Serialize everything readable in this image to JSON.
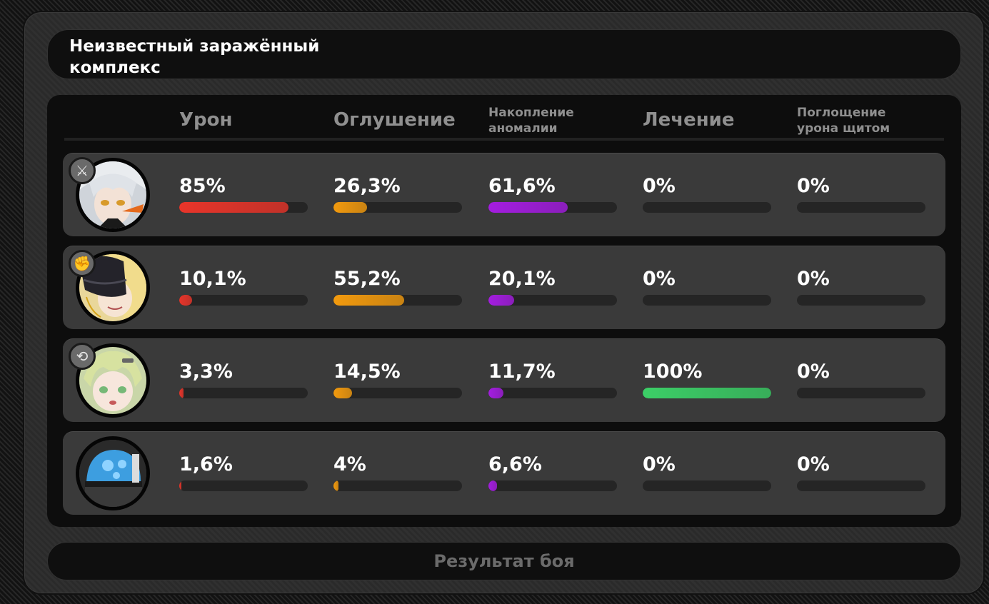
{
  "header": {
    "title": "Неизвестный заражённый комплекс"
  },
  "columns": {
    "damage": "Урон",
    "daze": "Оглушение",
    "anomaly": "Накопление аномалии",
    "healing": "Лечение",
    "shield": "Поглощение урона щитом"
  },
  "colors": {
    "damage": "#e8352a",
    "daze": "#f29a0e",
    "anomaly": "#a41de0",
    "healing": "#3ccf67",
    "shield": "#888888"
  },
  "agents": [
    {
      "avatar": "agent-portrait-silver-hair",
      "role_icon": "attack-role-icon",
      "stats": {
        "damage": {
          "label": "85%",
          "value": 0.85
        },
        "daze": {
          "label": "26,3%",
          "value": 0.263
        },
        "anomaly": {
          "label": "61,6%",
          "value": 0.616
        },
        "healing": {
          "label": "0%",
          "value": 0
        },
        "shield": {
          "label": "0%",
          "value": 0
        }
      }
    },
    {
      "avatar": "agent-portrait-blonde-masked",
      "role_icon": "stun-role-icon",
      "stats": {
        "damage": {
          "label": "10,1%",
          "value": 0.101
        },
        "daze": {
          "label": "55,2%",
          "value": 0.552
        },
        "anomaly": {
          "label": "20,1%",
          "value": 0.201
        },
        "healing": {
          "label": "0%",
          "value": 0
        },
        "shield": {
          "label": "0%",
          "value": 0
        }
      }
    },
    {
      "avatar": "agent-portrait-green-hair",
      "role_icon": "support-role-icon",
      "stats": {
        "damage": {
          "label": "3,3%",
          "value": 0.033
        },
        "daze": {
          "label": "14,5%",
          "value": 0.145
        },
        "anomaly": {
          "label": "11,7%",
          "value": 0.117
        },
        "healing": {
          "label": "100%",
          "value": 1.0
        },
        "shield": {
          "label": "0%",
          "value": 0
        }
      }
    },
    {
      "avatar": "bangboo-portrait-blue-helmet",
      "role_icon": "",
      "stats": {
        "damage": {
          "label": "1,6%",
          "value": 0.016
        },
        "daze": {
          "label": "4%",
          "value": 0.04
        },
        "anomaly": {
          "label": "6,6%",
          "value": 0.066
        },
        "healing": {
          "label": "0%",
          "value": 0
        },
        "shield": {
          "label": "0%",
          "value": 0
        }
      }
    }
  ],
  "footer": {
    "result_label": "Результат боя"
  }
}
